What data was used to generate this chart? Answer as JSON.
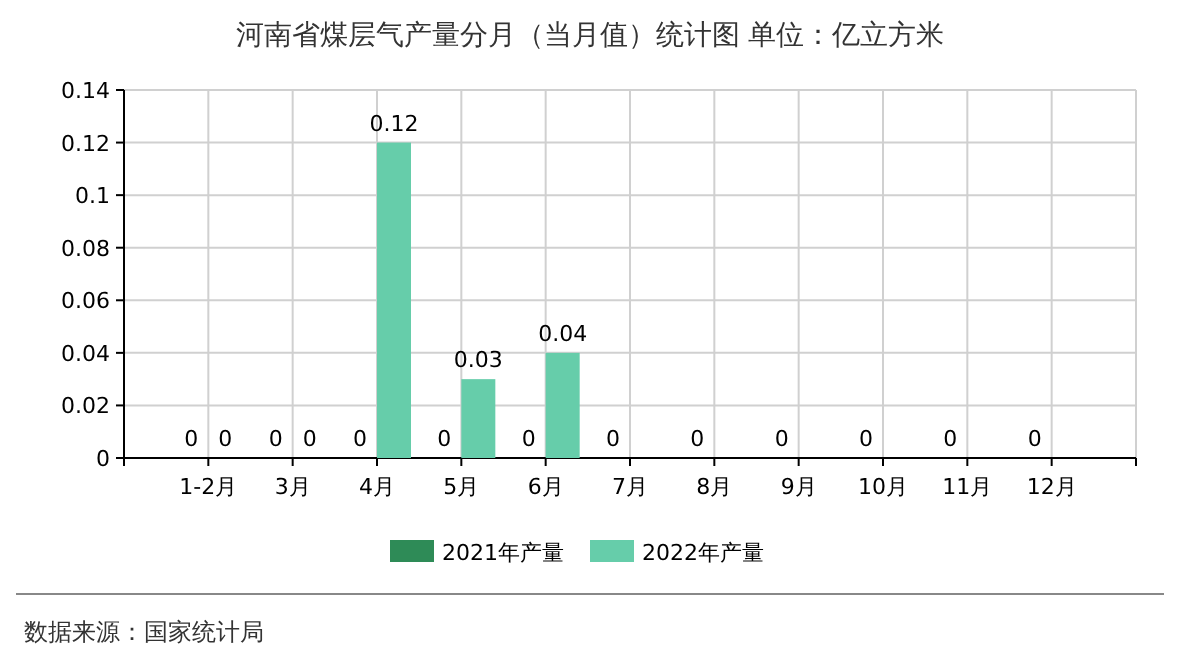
{
  "chart_data": {
    "type": "bar",
    "title": "河南省煤层气产量分月（当月值）统计图 单位：亿立方米",
    "categories": [
      "1-2月",
      "3月",
      "4月",
      "5月",
      "6月",
      "7月",
      "8月",
      "9月",
      "10月",
      "11月",
      "12月"
    ],
    "series": [
      {
        "name": "2021年产量",
        "color": "#2e8b57",
        "values": [
          0,
          0,
          0,
          0,
          0,
          0,
          0,
          0,
          0,
          0,
          0
        ]
      },
      {
        "name": "2022年产量",
        "color": "#66cdaa",
        "values": [
          0,
          0,
          0.12,
          0.03,
          0.04,
          null,
          null,
          null,
          null,
          null,
          null
        ]
      }
    ],
    "ylim": [
      0,
      0.14
    ],
    "yticks": [
      0,
      0.02,
      0.04,
      0.06,
      0.08,
      0.1,
      0.12,
      0.14
    ],
    "grid": true,
    "legend": "bottom",
    "data_labels": true,
    "annotations": [
      "数据来源：国家统计局"
    ]
  }
}
